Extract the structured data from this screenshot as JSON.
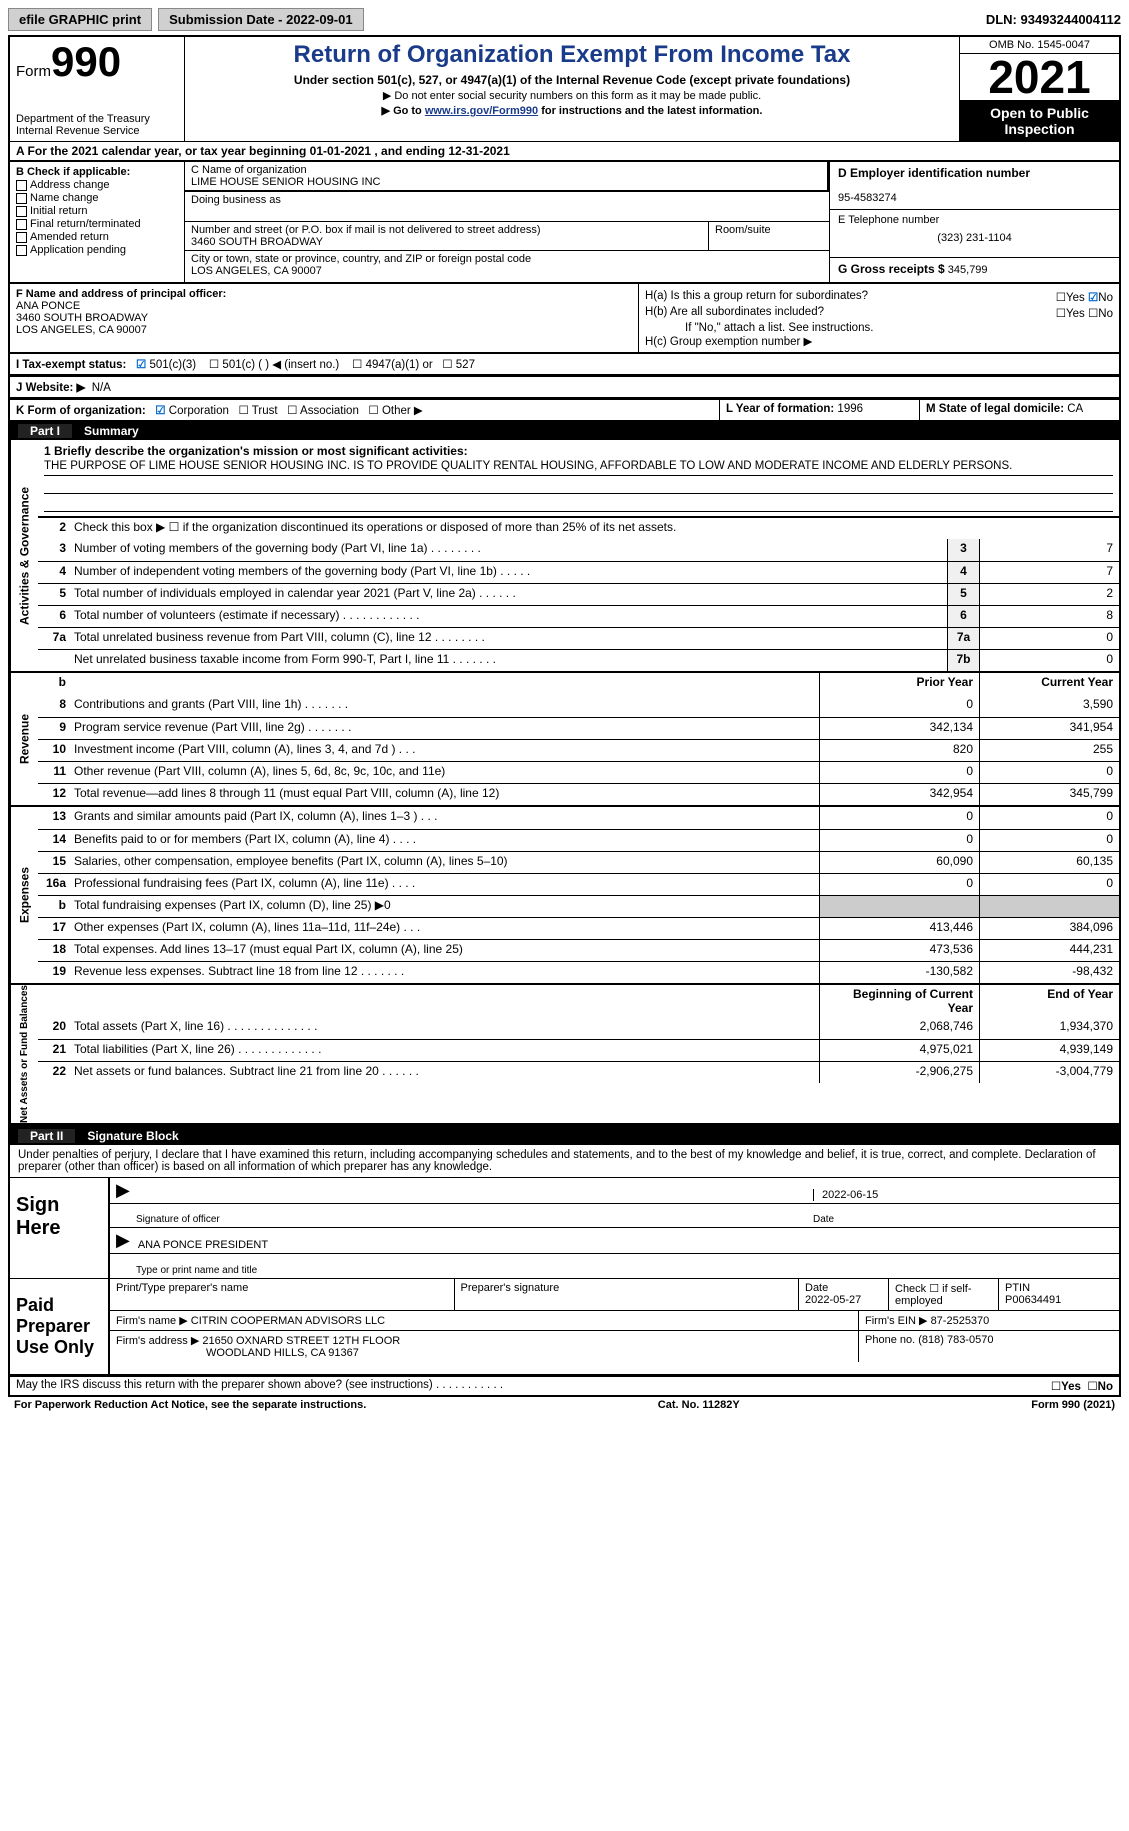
{
  "meta": {
    "efile_label": "efile GRAPHIC print",
    "submission_date_label": "Submission Date - 2022-09-01",
    "dln": "DLN: 93493244004112"
  },
  "header": {
    "form_prefix": "Form",
    "form_number": "990",
    "dept": "Department of the Treasury\nInternal Revenue Service",
    "title": "Return of Organization Exempt From Income Tax",
    "subtitle": "Under section 501(c), 527, or 4947(a)(1) of the Internal Revenue Code (except private foundations)",
    "note1": "▶ Do not enter social security numbers on this form as it may be made public.",
    "note2_pre": "▶ Go to ",
    "note2_link": "www.irs.gov/Form990",
    "note2_post": " for instructions and the latest information.",
    "omb": "OMB No. 1545-0047",
    "year": "2021",
    "open": "Open to Public Inspection"
  },
  "row_a": "A For the 2021 calendar year, or tax year beginning 01-01-2021    , and ending 12-31-2021",
  "col_b": {
    "header": "B Check if applicable:",
    "items": [
      "Address change",
      "Name change",
      "Initial return",
      "Final return/terminated",
      "Amended return",
      "Application pending"
    ]
  },
  "col_c": {
    "name_label": "C Name of organization",
    "name": "LIME HOUSE SENIOR HOUSING INC",
    "dba_label": "Doing business as",
    "dba": "",
    "street_label": "Number and street (or P.O. box if mail is not delivered to street address)",
    "street": "3460 SOUTH BROADWAY",
    "room_label": "Room/suite",
    "room": "",
    "city_label": "City or town, state or province, country, and ZIP or foreign postal code",
    "city": "LOS ANGELES, CA  90007"
  },
  "col_d": {
    "ein_label": "D Employer identification number",
    "ein": "95-4583274",
    "phone_label": "E Telephone number",
    "phone": "(323) 231-1104",
    "gross_label": "G Gross receipts $",
    "gross": "345,799"
  },
  "fh": {
    "f_label": "F  Name and address of principal officer:",
    "f_name": "ANA PONCE",
    "f_addr1": "3460 SOUTH BROADWAY",
    "f_addr2": "LOS ANGELES, CA  90007",
    "ha": "H(a)  Is this a group return for subordinates?",
    "hb": "H(b)  Are all subordinates included?",
    "hb_note": "If \"No,\" attach a list. See instructions.",
    "hc": "H(c)  Group exemption number  ▶",
    "yes": "Yes",
    "no": "No"
  },
  "i": {
    "label": "I    Tax-exempt status:",
    "opt1": "501(c)(3)",
    "opt2": "501(c) (   ) ◀ (insert no.)",
    "opt3": "4947(a)(1) or",
    "opt4": "527"
  },
  "j": {
    "label": "J   Website: ▶",
    "val": "N/A"
  },
  "k": {
    "label": "K Form of organization:",
    "opts": [
      "Corporation",
      "Trust",
      "Association",
      "Other ▶"
    ],
    "l_label": "L Year of formation:",
    "l_val": "1996",
    "m_label": "M State of legal domicile:",
    "m_val": "CA"
  },
  "part1": {
    "tag": "Part I",
    "title": "Summary"
  },
  "mission": {
    "label": "1   Briefly describe the organization's mission or most significant activities:",
    "text": "THE PURPOSE OF LIME HOUSE SENIOR HOUSING INC. IS TO PROVIDE QUALITY RENTAL HOUSING, AFFORDABLE TO LOW AND MODERATE INCOME AND ELDERLY PERSONS."
  },
  "act_gov": {
    "label": "Activities & Governance",
    "line2": "Check this box ▶ ☐ if the organization discontinued its operations or disposed of more than 25% of its net assets.",
    "rows": [
      {
        "n": "3",
        "t": "Number of voting members of the governing body (Part VI, line 1a)   .    .    .    .    .    .    .    .",
        "b": "3",
        "v": "7"
      },
      {
        "n": "4",
        "t": "Number of independent voting members of the governing body (Part VI, line 1b)   .    .    .    .    .",
        "b": "4",
        "v": "7"
      },
      {
        "n": "5",
        "t": "Total number of individuals employed in calendar year 2021 (Part V, line 2a)   .    .    .    .    .    .",
        "b": "5",
        "v": "2"
      },
      {
        "n": "6",
        "t": "Total number of volunteers (estimate if necessary)    .    .    .    .    .    .    .    .    .    .    .    .",
        "b": "6",
        "v": "8"
      },
      {
        "n": "7a",
        "t": "Total unrelated business revenue from Part VIII, column (C), line 12    .    .    .    .    .    .    .    .",
        "b": "7a",
        "v": "0"
      },
      {
        "n": "",
        "t": "Net unrelated business taxable income from Form 990-T, Part I, line 11   .    .    .    .    .    .    .",
        "b": "7b",
        "v": "0"
      }
    ]
  },
  "rev": {
    "label": "Revenue",
    "hdr_py": "Prior Year",
    "hdr_cy": "Current Year",
    "rows": [
      {
        "n": "8",
        "t": "Contributions and grants (Part VIII, line 1h)    .    .    .    .    .    .    .",
        "py": "0",
        "cy": "3,590"
      },
      {
        "n": "9",
        "t": "Program service revenue (Part VIII, line 2g)    .    .    .    .    .    .    .",
        "py": "342,134",
        "cy": "341,954"
      },
      {
        "n": "10",
        "t": "Investment income (Part VIII, column (A), lines 3, 4, and 7d )    .    .    .",
        "py": "820",
        "cy": "255"
      },
      {
        "n": "11",
        "t": "Other revenue (Part VIII, column (A), lines 5, 6d, 8c, 9c, 10c, and 11e)",
        "py": "0",
        "cy": "0"
      },
      {
        "n": "12",
        "t": "Total revenue—add lines 8 through 11 (must equal Part VIII, column (A), line 12)",
        "py": "342,954",
        "cy": "345,799"
      }
    ]
  },
  "exp": {
    "label": "Expenses",
    "rows": [
      {
        "n": "13",
        "t": "Grants and similar amounts paid (Part IX, column (A), lines 1–3 )   .    .    .",
        "py": "0",
        "cy": "0"
      },
      {
        "n": "14",
        "t": "Benefits paid to or for members (Part IX, column (A), line 4)    .    .    .    .",
        "py": "0",
        "cy": "0"
      },
      {
        "n": "15",
        "t": "Salaries, other compensation, employee benefits (Part IX, column (A), lines 5–10)",
        "py": "60,090",
        "cy": "60,135"
      },
      {
        "n": "16a",
        "t": "Professional fundraising fees (Part IX, column (A), line 11e)    .    .    .    .",
        "py": "0",
        "cy": "0"
      },
      {
        "n": "b",
        "t": "Total fundraising expenses (Part IX, column (D), line 25)  ▶0",
        "py": "",
        "cy": "",
        "shade": true
      },
      {
        "n": "17",
        "t": "Other expenses (Part IX, column (A), lines 11a–11d, 11f–24e)    .    .    .",
        "py": "413,446",
        "cy": "384,096"
      },
      {
        "n": "18",
        "t": "Total expenses. Add lines 13–17 (must equal Part IX, column (A), line 25)",
        "py": "473,536",
        "cy": "444,231"
      },
      {
        "n": "19",
        "t": "Revenue less expenses. Subtract line 18 from line 12  .    .    .    .    .    .    .",
        "py": "-130,582",
        "cy": "-98,432"
      }
    ]
  },
  "net": {
    "label": "Net Assets or Fund Balances",
    "hdr_py": "Beginning of Current Year",
    "hdr_cy": "End of Year",
    "rows": [
      {
        "n": "20",
        "t": "Total assets (Part X, line 16)   .    .    .    .    .    .    .    .    .    .    .    .    .    .",
        "py": "2,068,746",
        "cy": "1,934,370"
      },
      {
        "n": "21",
        "t": "Total liabilities (Part X, line 26)   .    .    .    .    .    .    .    .    .    .    .    .    .",
        "py": "4,975,021",
        "cy": "4,939,149"
      },
      {
        "n": "22",
        "t": "Net assets or fund balances. Subtract line 21 from line 20  .    .    .    .    .    .",
        "py": "-2,906,275",
        "cy": "-3,004,779"
      }
    ]
  },
  "part2": {
    "tag": "Part II",
    "title": "Signature Block"
  },
  "sig": {
    "decl": "Under penalties of perjury, I declare that I have examined this return, including accompanying schedules and statements, and to the best of my knowledge and belief, it is true, correct, and complete. Declaration of preparer (other than officer) is based on all information of which preparer has any knowledge.",
    "here": "Sign Here",
    "officer_sig_label": "Signature of officer",
    "date": "2022-06-15",
    "date_label": "Date",
    "officer_name": "ANA PONCE  PRESIDENT",
    "officer_name_label": "Type or print name and title"
  },
  "prep": {
    "label": "Paid Preparer Use Only",
    "print_label": "Print/Type preparer's name",
    "print_name": "",
    "sig_label": "Preparer's signature",
    "sig": "",
    "date_label": "Date",
    "date": "2022-05-27",
    "check_label": "Check ☐ if self-employed",
    "ptin_label": "PTIN",
    "ptin": "P00634491",
    "firm_name_label": "Firm's name    ▶",
    "firm_name": "CITRIN COOPERMAN ADVISORS LLC",
    "firm_ein_label": "Firm's EIN  ▶",
    "firm_ein": "87-2525370",
    "firm_addr_label": "Firm's address ▶",
    "firm_addr1": "21650 OXNARD STREET 12TH FLOOR",
    "firm_addr2": "WOODLAND HILLS, CA  91367",
    "phone_label": "Phone no.",
    "phone": "(818) 783-0570"
  },
  "footer": {
    "discuss": "May the IRS discuss this return with the preparer shown above? (see instructions)    .    .    .    .    .    .    .    .    .    .    .",
    "yes": "Yes",
    "no": "No",
    "paperwork": "For Paperwork Reduction Act Notice, see the separate instructions.",
    "cat": "Cat. No. 11282Y",
    "form": "Form 990 (2021)"
  },
  "colors": {
    "header_text": "#1a3a8a",
    "check_blue": "#0066cc",
    "black": "#000000",
    "shade": "#cccccc"
  }
}
